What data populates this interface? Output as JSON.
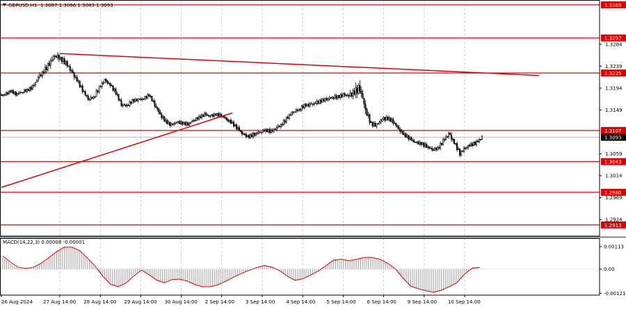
{
  "header": {
    "symbol_text": "GBPUSD,H1",
    "ohlc_text": "1.3087 1.3096 1.3083 1.3093"
  },
  "colors": {
    "background": "#ffffff",
    "grid": "#c8c8c8",
    "candles": "#000000",
    "levels": "#e00000",
    "price_tag_bg": "#e00000",
    "current_tag_bg": "#000000",
    "macd_signal": "#e00000",
    "macd_hist": "#a0a0a0"
  },
  "chart_data": [
    {
      "type": "candlestick",
      "title": "GBPUSD,H1",
      "ylim": [
        1.289,
        1.3375
      ],
      "y_ticks": [
        1.3284,
        1.3239,
        1.3194,
        1.3149,
        1.3059,
        1.3014,
        1.2969,
        1.2924
      ],
      "x_tick_labels": [
        "26 Aug 2024",
        "27 Aug 14:00",
        "28 Aug 14:00",
        "29 Aug 14:00",
        "30 Aug 14:00",
        "2 Sep 14:00",
        "3 Sep 14:00",
        "4 Sep 14:00",
        "5 Sep 14:00",
        "6 Sep 14:00",
        "9 Sep 14:00",
        "10 Sep 14:00"
      ],
      "grid": true,
      "horizontal_levels": [
        {
          "value": 1.3365,
          "label": "1.3365"
        },
        {
          "value": 1.3297,
          "label": "1.3297"
        },
        {
          "value": 1.3225,
          "label": "1.3225"
        },
        {
          "value": 1.3107,
          "label": "1.3107"
        },
        {
          "value": 1.3043,
          "label": "1.3043"
        },
        {
          "value": 1.298,
          "label": "1.2980"
        },
        {
          "value": 1.2913,
          "label": "1.2913"
        }
      ],
      "current_price": {
        "value": 1.3093,
        "label": "1.3093"
      },
      "trend_lines": [
        {
          "name": "descending resistance",
          "from": {
            "x": "27 Aug 14:00",
            "y": 1.3265
          },
          "to": {
            "x": "11 Sep",
            "y": 1.322
          }
        },
        {
          "name": "ascending support",
          "from": {
            "x": "26 Aug",
            "y": 1.299
          },
          "to": {
            "x": "3 Sep",
            "y": 1.3143
          }
        }
      ],
      "close_path": [
        1.318,
        1.3188,
        1.3182,
        1.3186,
        1.319,
        1.3196,
        1.3215,
        1.3228,
        1.3245,
        1.3262,
        1.3255,
        1.3245,
        1.3228,
        1.321,
        1.319,
        1.3172,
        1.3175,
        1.3195,
        1.321,
        1.32,
        1.3185,
        1.316,
        1.3158,
        1.3168,
        1.317,
        1.3172,
        1.318,
        1.316,
        1.314,
        1.3125,
        1.3118,
        1.3124,
        1.3122,
        1.312,
        1.3128,
        1.3134,
        1.314,
        1.3136,
        1.314,
        1.3138,
        1.313,
        1.3122,
        1.311,
        1.3098,
        1.3094,
        1.31,
        1.3104,
        1.3108,
        1.3105,
        1.3112,
        1.312,
        1.3135,
        1.3146,
        1.315,
        1.3158,
        1.316,
        1.3163,
        1.3168,
        1.3172,
        1.3175,
        1.3176,
        1.318,
        1.3178,
        1.3186,
        1.3195,
        1.315,
        1.312,
        1.3118,
        1.313,
        1.3132,
        1.3125,
        1.311,
        1.3098,
        1.309,
        1.3082,
        1.308,
        1.3075,
        1.3068,
        1.307,
        1.3085,
        1.31,
        1.3082,
        1.306,
        1.3072,
        1.3078,
        1.3082,
        1.3093
      ],
      "volatility": [
        9,
        8,
        8,
        8,
        8,
        9,
        10,
        12,
        14,
        16,
        14,
        12,
        12,
        12,
        10,
        9,
        9,
        10,
        10,
        9,
        9,
        10,
        9,
        8,
        8,
        8,
        8,
        10,
        12,
        10,
        9,
        9,
        8,
        8,
        8,
        8,
        8,
        8,
        8,
        8,
        9,
        9,
        9,
        10,
        9,
        9,
        8,
        8,
        9,
        9,
        10,
        10,
        9,
        9,
        9,
        9,
        9,
        9,
        9,
        9,
        9,
        10,
        10,
        14,
        24,
        22,
        14,
        10,
        10,
        10,
        10,
        10,
        10,
        9,
        9,
        9,
        9,
        9,
        9,
        10,
        11,
        12,
        11,
        10,
        10,
        9,
        8
      ]
    },
    {
      "type": "line",
      "title": "MACD(14,22,3) 0.00008 -0.00001",
      "ylim": [
        -0.0013,
        0.00155
      ],
      "y_ticks": [
        {
          "value": 0.00113,
          "label": "0.00113"
        },
        {
          "value": 0.0,
          "label": "0.00"
        },
        {
          "value": -0.00121,
          "label": "-0.00121"
        }
      ],
      "series": [
        {
          "kind": "histogram",
          "values": [
            0.0006,
            0.0003,
            5e-05,
            2e-05,
            0.0001,
            0.0003,
            0.0006,
            0.0009,
            0.00113,
            0.0011,
            0.0009,
            0.0005,
            0.0001,
            -0.0004,
            -0.0008,
            -0.0009,
            -0.0007,
            -0.0003,
            0.0,
            -0.0003,
            -0.0006,
            -0.0007,
            -0.0005,
            -0.0005,
            -0.0006,
            -0.0008,
            -0.0009,
            -0.0009,
            -0.0008,
            -0.0006,
            -0.0004,
            -0.0002,
            -5e-05,
            0.0001,
            0.0002,
            0.0001,
            -0.0001,
            -0.0004,
            -0.0006,
            -0.0005,
            -0.0003,
            -0.0001,
            0.0002,
            0.0005,
            0.0005,
            0.0004,
            0.0005,
            0.0006,
            0.0006,
            0.0005,
            0.0003,
            0.0,
            -0.0005,
            -0.0009,
            -0.001,
            -0.0011,
            -0.0012,
            -0.0011,
            -0.0009,
            -0.0007,
            -0.0002,
            0.0001,
            0.0001
          ]
        },
        {
          "kind": "signal",
          "values": [
            0.00065,
            0.00035,
            0.0001,
            3e-05,
            0.0001,
            0.0003,
            0.00058,
            0.00088,
            0.0011,
            0.0011,
            0.00092,
            0.00055,
            0.00015,
            -0.00035,
            -0.00075,
            -0.00088,
            -0.0007,
            -0.00035,
            -5e-05,
            -0.00028,
            -0.00055,
            -0.00068,
            -0.00052,
            -0.0005,
            -0.0006,
            -0.00078,
            -0.00088,
            -0.00088,
            -0.00078,
            -0.0006,
            -0.0004,
            -0.00022,
            -6e-05,
            8e-05,
            0.00018,
            0.0001,
            -8e-05,
            -0.00036,
            -0.00056,
            -0.00048,
            -0.0003,
            -0.0001,
            0.00018,
            0.00045,
            0.0005,
            0.00042,
            0.0005,
            0.00058,
            0.00058,
            0.0005,
            0.0003,
            2e-05,
            -0.00045,
            -0.00085,
            -0.00098,
            -0.00108,
            -0.00115,
            -0.00105,
            -0.00088,
            -0.00068,
            -0.00025,
            5e-05,
            8e-05
          ]
        }
      ]
    }
  ]
}
